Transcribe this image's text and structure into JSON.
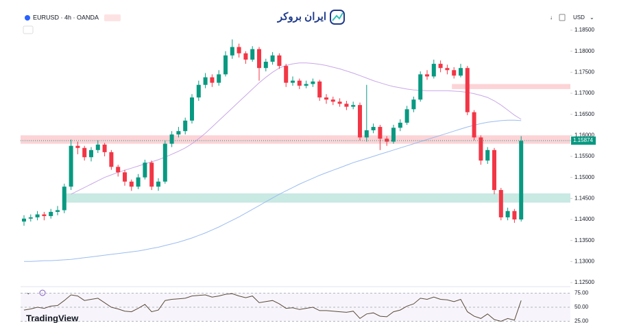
{
  "header": {
    "symbol": "EURUSD · 4h · OANDA",
    "brand": "ایران بروکر",
    "currency": "USD",
    "watermark": "TradingView"
  },
  "chart_data": {
    "type": "candlestick",
    "candles": {
      "open": [
        1.1395,
        1.1402,
        1.1405,
        1.1412,
        1.1408,
        1.1418,
        1.1422,
        1.1478,
        1.1575,
        1.157,
        1.1548,
        1.1565,
        1.1578,
        1.156,
        1.1525,
        1.1512,
        1.149,
        1.1478,
        1.15,
        1.1535,
        1.1478,
        1.149,
        1.158,
        1.1602,
        1.161,
        1.1635,
        1.169,
        1.172,
        1.1738,
        1.1725,
        1.1745,
        1.179,
        1.181,
        1.1795,
        1.178,
        1.1805,
        1.176,
        1.1775,
        1.179,
        1.1765,
        1.1725,
        1.173,
        1.1718,
        1.1722,
        1.1728,
        1.169,
        1.1685,
        1.168,
        1.1675,
        1.1668,
        1.1672,
        1.1595,
        1.1612,
        1.162,
        1.1592,
        1.1585,
        1.1618,
        1.163,
        1.1662,
        1.1685,
        1.1745,
        1.174,
        1.177,
        1.176,
        1.1755,
        1.1742,
        1.176,
        1.1655,
        1.1595,
        1.154,
        1.1565,
        1.147,
        1.1405,
        1.142,
        1.14
      ],
      "high": [
        1.141,
        1.1412,
        1.142,
        1.1418,
        1.1425,
        1.1432,
        1.1485,
        1.159,
        1.1585,
        1.1575,
        1.1572,
        1.1588,
        1.1582,
        1.1565,
        1.153,
        1.1518,
        1.1495,
        1.1508,
        1.1542,
        1.154,
        1.1498,
        1.1588,
        1.161,
        1.162,
        1.1642,
        1.1698,
        1.173,
        1.1748,
        1.1745,
        1.1755,
        1.18,
        1.1828,
        1.1818,
        1.18,
        1.1812,
        1.181,
        1.1782,
        1.1798,
        1.1795,
        1.177,
        1.174,
        1.1735,
        1.173,
        1.1735,
        1.1732,
        1.1698,
        1.1692,
        1.1688,
        1.1682,
        1.168,
        1.1678,
        1.172,
        1.1628,
        1.1625,
        1.1598,
        1.1625,
        1.1638,
        1.167,
        1.1692,
        1.1752,
        1.1755,
        1.178,
        1.1778,
        1.1768,
        1.1762,
        1.177,
        1.1765,
        1.166,
        1.16,
        1.1572,
        1.157,
        1.1475,
        1.1428,
        1.1425,
        1.1598
      ],
      "low": [
        1.1385,
        1.1395,
        1.1398,
        1.1398,
        1.1402,
        1.141,
        1.1415,
        1.147,
        1.1555,
        1.154,
        1.1538,
        1.1558,
        1.155,
        1.1518,
        1.1502,
        1.148,
        1.1468,
        1.1472,
        1.1495,
        1.147,
        1.1468,
        1.1485,
        1.1572,
        1.1595,
        1.1602,
        1.1628,
        1.1682,
        1.1712,
        1.1715,
        1.1718,
        1.174,
        1.1782,
        1.1785,
        1.177,
        1.1775,
        1.173,
        1.1752,
        1.1768,
        1.1758,
        1.1715,
        1.1718,
        1.171,
        1.1712,
        1.1715,
        1.1682,
        1.1675,
        1.1672,
        1.1668,
        1.166,
        1.1662,
        1.1588,
        1.1585,
        1.1605,
        1.1565,
        1.1575,
        1.158,
        1.161,
        1.1625,
        1.1655,
        1.168,
        1.1732,
        1.1735,
        1.175,
        1.1745,
        1.1735,
        1.1738,
        1.1648,
        1.1588,
        1.153,
        1.1532,
        1.146,
        1.1398,
        1.1398,
        1.1392,
        1.1395
      ],
      "close": [
        1.1402,
        1.1405,
        1.1412,
        1.1408,
        1.1418,
        1.1422,
        1.1478,
        1.1575,
        1.157,
        1.1548,
        1.1565,
        1.1578,
        1.156,
        1.1525,
        1.1512,
        1.149,
        1.1478,
        1.15,
        1.1535,
        1.1478,
        1.149,
        1.158,
        1.1602,
        1.161,
        1.1635,
        1.169,
        1.172,
        1.1738,
        1.1725,
        1.1745,
        1.179,
        1.181,
        1.1795,
        1.178,
        1.1805,
        1.176,
        1.1775,
        1.179,
        1.1765,
        1.1725,
        1.173,
        1.1718,
        1.1722,
        1.1728,
        1.169,
        1.1685,
        1.168,
        1.1675,
        1.1668,
        1.1672,
        1.1595,
        1.1612,
        1.162,
        1.1592,
        1.1585,
        1.1618,
        1.163,
        1.1662,
        1.1685,
        1.1745,
        1.174,
        1.177,
        1.176,
        1.1755,
        1.1742,
        1.176,
        1.1655,
        1.1595,
        1.154,
        1.1565,
        1.147,
        1.1405,
        1.142,
        1.14,
        1.1587
      ]
    },
    "up_color": "#089981",
    "down_color": "#f23645",
    "moving_averages": [
      {
        "color": "#c9a7e8",
        "values": [
          null,
          null,
          null,
          null,
          null,
          null,
          null,
          1.146,
          1.1468,
          1.1476,
          1.1484,
          1.1492,
          1.15,
          1.1506,
          1.1512,
          1.1517,
          1.1522,
          1.1527,
          1.1532,
          1.1537,
          1.1542,
          1.1548,
          1.1555,
          1.1562,
          1.157,
          1.158,
          1.1592,
          1.1605,
          1.162,
          1.1635,
          1.165,
          1.1665,
          1.168,
          1.1695,
          1.171,
          1.1725,
          1.1738,
          1.175,
          1.176,
          1.1766,
          1.177,
          1.1772,
          1.1772,
          1.1771,
          1.1769,
          1.1766,
          1.1762,
          1.1758,
          1.1753,
          1.1748,
          1.1742,
          1.1736,
          1.173,
          1.1725,
          1.172,
          1.1716,
          1.1713,
          1.171,
          1.1708,
          1.1707,
          1.1706,
          1.1706,
          1.1706,
          1.1706,
          1.1705,
          1.1704,
          1.1702,
          1.1699,
          1.1695,
          1.169,
          1.1682,
          1.1672,
          1.166,
          1.1648,
          1.1638
        ]
      },
      {
        "color": "#9bbcf0",
        "values": [
          1.13,
          1.13,
          1.1301,
          1.1302,
          1.1302,
          1.1303,
          1.1304,
          1.1305,
          1.1307,
          1.1309,
          1.1311,
          1.1313,
          1.1315,
          1.1317,
          1.1319,
          1.1321,
          1.1323,
          1.1325,
          1.1328,
          1.1331,
          1.1334,
          1.1338,
          1.1342,
          1.1346,
          1.1351,
          1.1356,
          1.1362,
          1.1368,
          1.1375,
          1.1382,
          1.139,
          1.1398,
          1.1406,
          1.1415,
          1.1424,
          1.1433,
          1.1442,
          1.1451,
          1.146,
          1.1468,
          1.1476,
          1.1484,
          1.1491,
          1.1498,
          1.1505,
          1.1511,
          1.1517,
          1.1523,
          1.1529,
          1.1535,
          1.154,
          1.1545,
          1.155,
          1.1555,
          1.156,
          1.1565,
          1.157,
          1.1575,
          1.158,
          1.1585,
          1.159,
          1.1595,
          1.16,
          1.1605,
          1.161,
          1.1615,
          1.162,
          1.1624,
          1.1628,
          1.1631,
          1.1633,
          1.1635,
          1.1636,
          1.1636,
          1.1635
        ]
      }
    ],
    "zones": [
      {
        "low": 1.158,
        "high": 1.16,
        "start": 0,
        "color": "#f23645"
      },
      {
        "low": 1.171,
        "high": 1.1722,
        "start": 64,
        "color": "#f23645"
      },
      {
        "low": 1.144,
        "high": 1.1462,
        "start": 6,
        "color": "#089981"
      }
    ],
    "last_price": 1.15874,
    "ylim": [
      1.125,
      1.185
    ],
    "yticks": [
      {
        "value": 1.125,
        "label": "1.12500"
      },
      {
        "value": 1.13,
        "label": "1.13000"
      },
      {
        "value": 1.135,
        "label": "1.13500"
      },
      {
        "value": 1.14,
        "label": "1.14000"
      },
      {
        "value": 1.145,
        "label": "1.14500"
      },
      {
        "value": 1.15,
        "label": "1.15000"
      },
      {
        "value": 1.155,
        "label": "1.15500"
      },
      {
        "value": 1.16,
        "label": "1.16000"
      },
      {
        "value": 1.165,
        "label": "1.16500"
      },
      {
        "value": 1.17,
        "label": "1.17000"
      },
      {
        "value": 1.175,
        "label": "1.17500"
      },
      {
        "value": 1.18,
        "label": "1.18000"
      },
      {
        "value": 1.185,
        "label": "1.18500"
      }
    ],
    "grid": false,
    "rsi": {
      "color": "#5b4a3a",
      "values": [
        45,
        47,
        50,
        48,
        52,
        53,
        62,
        72,
        70,
        62,
        64,
        66,
        58,
        50,
        47,
        43,
        42,
        48,
        55,
        42,
        45,
        62,
        64,
        65,
        66,
        70,
        71,
        72,
        68,
        70,
        73,
        74,
        70,
        67,
        70,
        58,
        60,
        62,
        56,
        48,
        49,
        46,
        48,
        50,
        44,
        44,
        43,
        42,
        41,
        43,
        30,
        38,
        40,
        34,
        33,
        42,
        45,
        52,
        56,
        66,
        64,
        68,
        64,
        63,
        60,
        64,
        42,
        34,
        30,
        38,
        28,
        25,
        30,
        27,
        62
      ],
      "ylim": [
        25,
        75
      ],
      "yticks": [
        {
          "value": 75,
          "label": "75.00"
        },
        {
          "value": 50,
          "label": "50.00"
        },
        {
          "value": 25,
          "label": "25.00"
        }
      ]
    }
  }
}
